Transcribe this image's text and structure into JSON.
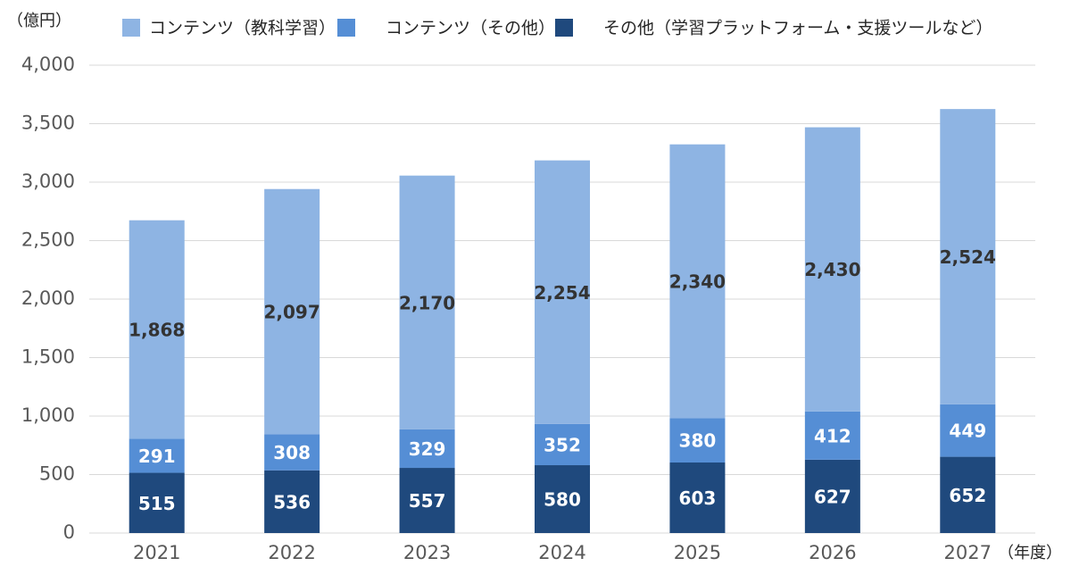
{
  "chart_data": {
    "type": "stacked-bar",
    "y_unit": "（億円）",
    "x_unit": "（年度）",
    "categories": [
      "2021",
      "2022",
      "2023",
      "2024",
      "2025",
      "2026",
      "2027"
    ],
    "series": [
      {
        "name": "コンテンツ（教科学習）",
        "color": "#8eb4e3",
        "label_color": "#333333",
        "values": [
          1868,
          2097,
          2170,
          2254,
          2340,
          2430,
          2524
        ],
        "value_labels": [
          "1,868",
          "2,097",
          "2,170",
          "2,254",
          "2,340",
          "2,430",
          "2,524"
        ]
      },
      {
        "name": "コンテンツ（その他）",
        "color": "#558ed5",
        "label_color": "#ffffff",
        "values": [
          291,
          308,
          329,
          352,
          380,
          412,
          449
        ]
      },
      {
        "name": "その他（学習プラットフォーム・支援ツールなど）",
        "color": "#1f497d",
        "label_color": "#ffffff",
        "values": [
          515,
          536,
          557,
          580,
          603,
          627,
          652
        ]
      }
    ],
    "ylim": [
      0,
      4000
    ],
    "yticks": [
      0,
      500,
      {
        "value": 1000,
        "label": "1,000"
      },
      {
        "value": 1500,
        "label": "1,500"
      },
      {
        "value": 2000,
        "label": "2,000"
      },
      {
        "value": 2500,
        "label": "2,500"
      },
      {
        "value": 3000,
        "label": "3,000"
      },
      {
        "value": 3500,
        "label": "3,500"
      },
      {
        "value": 4000,
        "label": "4,000"
      }
    ],
    "grid": true
  }
}
